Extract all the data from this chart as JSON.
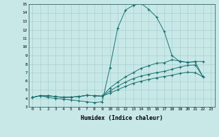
{
  "title": "",
  "xlabel": "Humidex (Indice chaleur)",
  "ylabel": "",
  "bg_color": "#c8e8e8",
  "line_color": "#1a7070",
  "xlim": [
    -0.5,
    23.5
  ],
  "ylim": [
    3,
    15
  ],
  "xticks": [
    0,
    1,
    2,
    3,
    4,
    5,
    6,
    7,
    8,
    9,
    10,
    11,
    12,
    13,
    14,
    15,
    16,
    17,
    18,
    19,
    20,
    21,
    22,
    23
  ],
  "yticks": [
    3,
    4,
    5,
    6,
    7,
    8,
    9,
    10,
    11,
    12,
    13,
    14,
    15
  ],
  "line1_x": [
    0,
    1,
    2,
    3,
    4,
    5,
    6,
    7,
    8,
    9,
    10,
    11,
    12,
    13,
    14,
    15,
    16,
    17,
    18,
    19,
    20,
    21,
    22
  ],
  "line1_y": [
    4.1,
    4.3,
    4.1,
    4.0,
    3.9,
    3.8,
    3.7,
    3.6,
    3.5,
    3.6,
    7.6,
    12.2,
    14.3,
    14.85,
    15.1,
    14.4,
    13.5,
    11.8,
    9.0,
    8.3,
    8.2,
    8.25,
    6.5
  ],
  "line2_x": [
    0,
    1,
    2,
    3,
    4,
    5,
    6,
    7,
    8,
    9,
    10,
    11,
    12,
    13,
    14,
    15,
    16,
    17,
    18,
    19,
    20,
    21,
    22
  ],
  "line2_y": [
    4.1,
    4.3,
    4.3,
    4.2,
    4.1,
    4.15,
    4.2,
    4.35,
    4.3,
    4.25,
    5.2,
    5.9,
    6.5,
    7.0,
    7.5,
    7.8,
    8.1,
    8.15,
    8.5,
    8.35,
    8.2,
    8.3,
    8.3
  ],
  "line3_x": [
    0,
    1,
    2,
    3,
    4,
    5,
    6,
    7,
    8,
    9,
    10,
    11,
    12,
    13,
    14,
    15,
    16,
    17,
    18,
    19,
    20,
    21,
    22
  ],
  "line3_y": [
    4.1,
    4.3,
    4.3,
    4.2,
    4.1,
    4.15,
    4.2,
    4.35,
    4.3,
    4.25,
    4.85,
    5.4,
    5.9,
    6.3,
    6.6,
    6.8,
    7.0,
    7.15,
    7.4,
    7.65,
    7.85,
    7.9,
    6.5
  ],
  "line4_x": [
    0,
    1,
    2,
    3,
    4,
    5,
    6,
    7,
    8,
    9,
    10,
    11,
    12,
    13,
    14,
    15,
    16,
    17,
    18,
    19,
    20,
    21,
    22
  ],
  "line4_y": [
    4.1,
    4.3,
    4.3,
    4.2,
    4.1,
    4.15,
    4.2,
    4.35,
    4.3,
    4.25,
    4.6,
    5.0,
    5.4,
    5.75,
    6.0,
    6.2,
    6.4,
    6.55,
    6.7,
    6.9,
    7.05,
    7.0,
    6.5
  ]
}
